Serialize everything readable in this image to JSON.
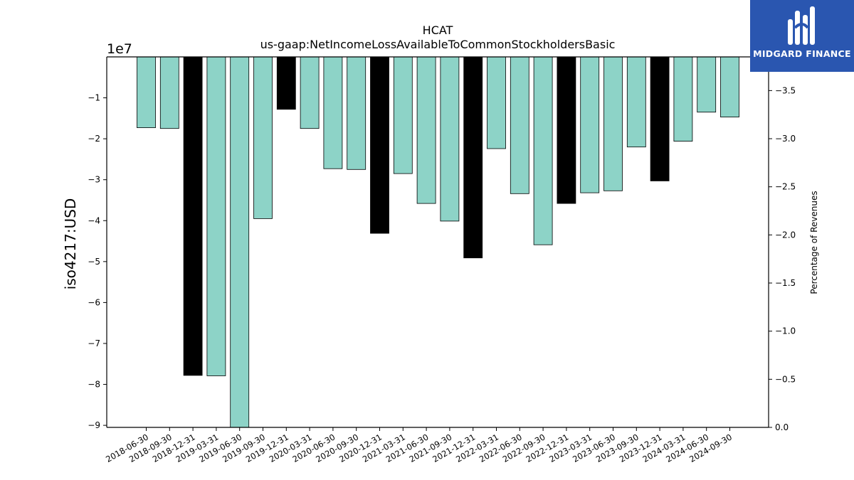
{
  "chart_data": {
    "type": "bar",
    "title": "HCAT",
    "subtitle": "us-gaap:NetIncomeLossAvailableToCommonStockholdersBasic",
    "ylabel": "iso4217:USD",
    "y_offset_label": "1e7",
    "y2label": "Percentage of Revenues",
    "ylim": [
      -90500000,
      0
    ],
    "y2lim": [
      0.0,
      -3.85
    ],
    "yticks": [
      -1,
      -2,
      -3,
      -4,
      -5,
      -6,
      -7,
      -8,
      -9
    ],
    "y2ticks": [
      -3.5,
      -3.0,
      -2.5,
      -2.0,
      -1.5,
      -1.0,
      -0.5,
      0.0
    ],
    "categories": [
      "2018-06-30",
      "2018-09-30",
      "2018-12-31",
      "2019-03-31",
      "2019-06-30",
      "2019-09-30",
      "2019-12-31",
      "2020-03-31",
      "2020-06-30",
      "2020-09-30",
      "2020-12-31",
      "2021-03-31",
      "2021-06-30",
      "2021-09-30",
      "2021-12-31",
      "2022-03-31",
      "2022-06-30",
      "2022-09-30",
      "2022-12-31",
      "2023-03-31",
      "2023-06-30",
      "2023-09-30",
      "2023-12-31",
      "2024-03-31",
      "2024-06-30",
      "2024-09-30"
    ],
    "values": [
      -17300000,
      -17500000,
      -77800000,
      -77900000,
      -90500000,
      -39500000,
      -12800000,
      -17500000,
      -27300000,
      -27500000,
      -43100000,
      -28500000,
      -35800000,
      -40100000,
      -49100000,
      -22400000,
      -33400000,
      -45900000,
      -35800000,
      -33200000,
      -32700000,
      -22000000,
      -30300000,
      -20600000,
      -13500000,
      -14700000
    ],
    "annual": [
      false,
      false,
      true,
      false,
      false,
      false,
      true,
      false,
      false,
      false,
      true,
      false,
      false,
      false,
      true,
      false,
      false,
      false,
      true,
      false,
      false,
      false,
      true,
      false,
      false,
      false
    ],
    "colors": {
      "quarterly": "#8dd3c7",
      "annual": "#000000",
      "edge": "#000000"
    },
    "grid": false,
    "legend": "none"
  },
  "logo": {
    "text": "MIDGARD FINANCE",
    "icon": "midgard-logo-icon"
  }
}
